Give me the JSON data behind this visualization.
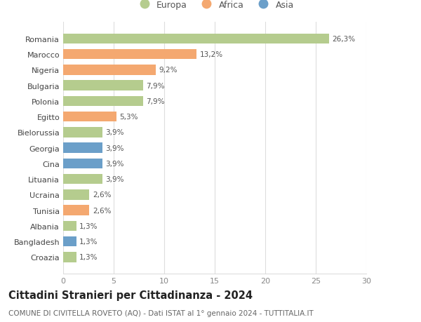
{
  "countries": [
    "Romania",
    "Marocco",
    "Nigeria",
    "Bulgaria",
    "Polonia",
    "Egitto",
    "Bielorussia",
    "Georgia",
    "Cina",
    "Lituania",
    "Ucraina",
    "Tunisia",
    "Albania",
    "Bangladesh",
    "Croazia"
  ],
  "values": [
    26.3,
    13.2,
    9.2,
    7.9,
    7.9,
    5.3,
    3.9,
    3.9,
    3.9,
    3.9,
    2.6,
    2.6,
    1.3,
    1.3,
    1.3
  ],
  "labels": [
    "26,3%",
    "13,2%",
    "9,2%",
    "7,9%",
    "7,9%",
    "5,3%",
    "3,9%",
    "3,9%",
    "3,9%",
    "3,9%",
    "2,6%",
    "2,6%",
    "1,3%",
    "1,3%",
    "1,3%"
  ],
  "continents": [
    "Europa",
    "Africa",
    "Africa",
    "Europa",
    "Europa",
    "Africa",
    "Europa",
    "Asia",
    "Asia",
    "Europa",
    "Europa",
    "Africa",
    "Europa",
    "Asia",
    "Europa"
  ],
  "colors": {
    "Europa": "#b5cc8e",
    "Africa": "#f4a870",
    "Asia": "#6b9fc9"
  },
  "xlim": [
    0,
    30
  ],
  "xticks": [
    0,
    5,
    10,
    15,
    20,
    25,
    30
  ],
  "title": "Cittadini Stranieri per Cittadinanza - 2024",
  "subtitle": "COMUNE DI CIVITELLA ROVETO (AQ) - Dati ISTAT al 1° gennaio 2024 - TUTTITALIA.IT",
  "background_color": "#ffffff",
  "grid_color": "#dddddd",
  "bar_height": 0.65,
  "title_fontsize": 10.5,
  "subtitle_fontsize": 7.5,
  "label_fontsize": 7.5,
  "tick_fontsize": 8,
  "legend_fontsize": 9
}
